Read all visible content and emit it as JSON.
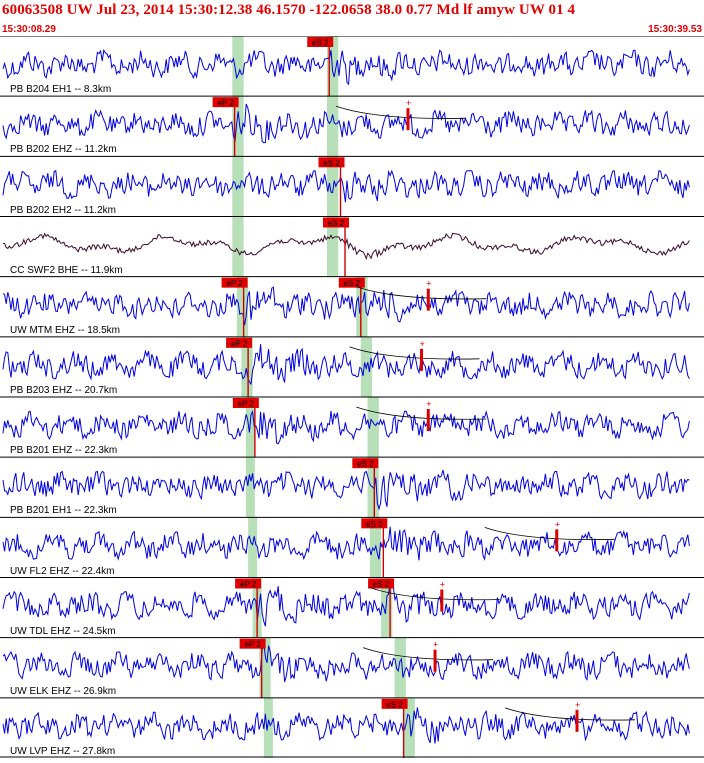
{
  "header": {
    "title": "60063508 UW Jul 23, 2014 15:30:12.38   46.1570 -122.0658 38.0 0.77 Md lf amyw UW 01   4",
    "start_time": "15:30:08.29",
    "end_time": "15:30:39.53"
  },
  "colors": {
    "title": "#e00000",
    "trace": "#0000dd",
    "trace_alt": "#3a0a2a",
    "pick_box": "#e00000",
    "pick_window": "#b8e0b8",
    "divider": "#000000"
  },
  "time_window": [
    8.29,
    39.53
  ],
  "traces": [
    {
      "label": "PB B204 EH1 -- 8.3km",
      "color": "trace",
      "picks": [
        {
          "label": "eS 2",
          "t": 22.9
        }
      ],
      "coda": false,
      "green": [
        [
          18.6,
          19.1
        ],
        [
          22.8,
          23.3
        ]
      ]
    },
    {
      "label": "PB B202 EHZ -- 11.2km",
      "color": "trace",
      "picks": [
        {
          "label": "eP 2",
          "t": 18.7
        }
      ],
      "coda": true,
      "green": [
        [
          18.6,
          19.1
        ],
        [
          22.8,
          23.3
        ]
      ]
    },
    {
      "label": "PB B202 EH2 -- 11.2km",
      "color": "trace",
      "picks": [
        {
          "label": "eS 2",
          "t": 23.4
        }
      ],
      "coda": false,
      "green": [
        [
          18.6,
          19.1
        ],
        [
          22.8,
          23.3
        ]
      ]
    },
    {
      "label": "CC SWF2 BHE -- 11.9km",
      "color": "trace_alt",
      "picks": [
        {
          "label": "eS 2",
          "t": 23.6
        }
      ],
      "coda": false,
      "green": [
        [
          18.6,
          19.1
        ],
        [
          22.8,
          23.3
        ]
      ]
    },
    {
      "label": "UW MTM EHZ -- 18.5km",
      "color": "trace",
      "picks": [
        {
          "label": "eP 2",
          "t": 19.1
        },
        {
          "label": "eS 2",
          "t": 24.3
        }
      ],
      "coda": true,
      "green": [
        [
          18.8,
          19.3
        ],
        [
          24.1,
          24.6
        ]
      ]
    },
    {
      "label": "PB B203 EHZ -- 20.7km",
      "color": "trace",
      "picks": [
        {
          "label": "eP 2",
          "t": 19.3
        }
      ],
      "coda": true,
      "green": [
        [
          19.0,
          19.5
        ],
        [
          24.3,
          24.8
        ]
      ]
    },
    {
      "label": "PB B201 EHZ -- 22.3km",
      "color": "trace",
      "picks": [
        {
          "label": "eP 2",
          "t": 19.6
        }
      ],
      "coda": true,
      "green": [
        [
          19.2,
          19.6
        ],
        [
          24.6,
          25.1
        ]
      ]
    },
    {
      "label": "PB B201 EH1 -- 22.3km",
      "color": "trace",
      "picks": [
        {
          "label": "eS 2",
          "t": 24.9
        }
      ],
      "coda": false,
      "green": [
        [
          19.2,
          19.6
        ],
        [
          24.6,
          25.1
        ]
      ]
    },
    {
      "label": "UW FL2 EHZ -- 22.4km",
      "color": "trace",
      "picks": [
        {
          "label": "eS 2",
          "t": 25.3
        }
      ],
      "coda": true,
      "green": [
        [
          19.3,
          19.7
        ],
        [
          24.7,
          25.2
        ]
      ]
    },
    {
      "label": "UW TDL EHZ -- 24.5km",
      "color": "trace",
      "picks": [
        {
          "label": "eP 2",
          "t": 19.7
        },
        {
          "label": "eS 2",
          "t": 25.6
        }
      ],
      "coda": true,
      "green": [
        [
          19.5,
          19.9
        ],
        [
          25.2,
          25.7
        ]
      ]
    },
    {
      "label": "UW ELK EHZ -- 26.9km",
      "color": "trace",
      "picks": [
        {
          "label": "eP 2",
          "t": 19.9
        }
      ],
      "coda": true,
      "green": [
        [
          19.8,
          20.3
        ],
        [
          25.8,
          26.3
        ]
      ]
    },
    {
      "label": "UW LVP EHZ -- 27.8km",
      "color": "trace",
      "picks": [
        {
          "label": "eS 2",
          "t": 26.2
        }
      ],
      "coda": true,
      "green": [
        [
          20.0,
          20.4
        ],
        [
          26.2,
          26.7
        ]
      ]
    }
  ]
}
